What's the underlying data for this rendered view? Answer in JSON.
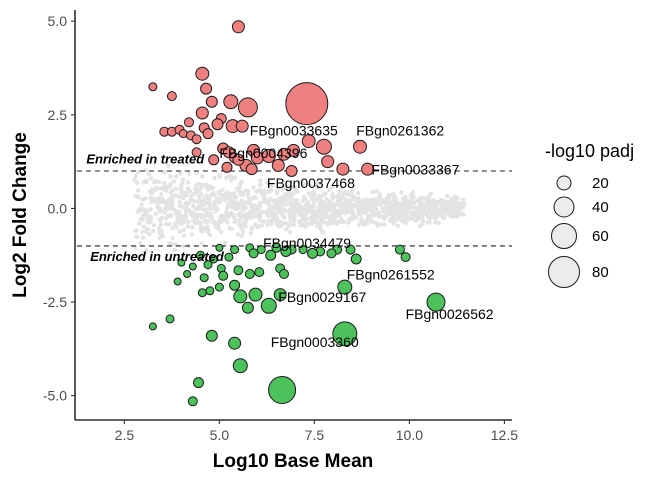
{
  "chart_data": {
    "type": "scatter",
    "xlabel": "Log10 Base Mean",
    "ylabel": "Log2 Fold Change",
    "xlim": [
      1.2,
      12.7
    ],
    "ylim": [
      -5.65,
      5.3
    ],
    "xticks": [
      2.5,
      5.0,
      7.5,
      10.0,
      12.5
    ],
    "xtick_labels": [
      "2.5",
      "5.0",
      "7.5",
      "10.0",
      "12.5"
    ],
    "yticks": [
      -5.0,
      -2.5,
      0.0,
      2.5,
      5.0
    ],
    "ytick_labels": [
      "-5.0",
      "-2.5",
      "0.0",
      "2.5",
      "5.0"
    ],
    "thresholds": [
      1,
      -1
    ],
    "annotations": {
      "up": {
        "text": "Enriched in treated",
        "x": 1.5,
        "y": 1.2
      },
      "down": {
        "text": "Enriched in untreated",
        "x": 1.6,
        "y": -1.4
      }
    },
    "legend": {
      "title": "-log10 padj",
      "entries": [
        {
          "label": "20",
          "value": 20
        },
        {
          "label": "40",
          "value": 40
        },
        {
          "label": "60",
          "value": 60
        },
        {
          "label": "80",
          "value": 80
        }
      ]
    },
    "colors": {
      "up": "#f08080",
      "down": "#4cc25a",
      "background": "#e3e3e3",
      "outline": "#1a1a1a"
    },
    "series": [
      {
        "name": "Enriched in treated",
        "points": [
          [
            5.5,
            4.85,
            12
          ],
          [
            4.55,
            3.6,
            13
          ],
          [
            3.25,
            3.25,
            8
          ],
          [
            4.65,
            3.2,
            11
          ],
          [
            3.75,
            3.0,
            9
          ],
          [
            4.8,
            2.85,
            11
          ],
          [
            5.3,
            2.85,
            14
          ],
          [
            5.75,
            2.7,
            19
          ],
          [
            7.3,
            2.8,
            42
          ],
          [
            4.55,
            2.55,
            12
          ],
          [
            5.05,
            2.4,
            10
          ],
          [
            4.95,
            2.25,
            11
          ],
          [
            5.35,
            2.2,
            13
          ],
          [
            5.6,
            2.2,
            12
          ],
          [
            4.2,
            2.3,
            9
          ],
          [
            4.6,
            2.15,
            10
          ],
          [
            3.55,
            2.05,
            9
          ],
          [
            3.75,
            2.05,
            9
          ],
          [
            3.95,
            2.1,
            9
          ],
          [
            4.05,
            2.0,
            8
          ],
          [
            4.25,
            1.95,
            9
          ],
          [
            4.4,
            1.85,
            9
          ],
          [
            4.7,
            2.0,
            10
          ],
          [
            5.1,
            1.6,
            11
          ],
          [
            5.25,
            1.5,
            11
          ],
          [
            5.4,
            1.35,
            10
          ],
          [
            5.9,
            1.55,
            12
          ],
          [
            6.0,
            1.35,
            12
          ],
          [
            6.3,
            1.4,
            13
          ],
          [
            6.7,
            1.45,
            12
          ],
          [
            6.95,
            1.55,
            12
          ],
          [
            7.35,
            1.8,
            13
          ],
          [
            7.75,
            1.65,
            15
          ],
          [
            8.7,
            1.65,
            13
          ],
          [
            6.55,
            1.15,
            12
          ],
          [
            6.9,
            1.0,
            11
          ],
          [
            8.25,
            1.05,
            12
          ],
          [
            8.9,
            1.05,
            12
          ],
          [
            5.7,
            1.15,
            12
          ],
          [
            5.5,
            1.3,
            11
          ],
          [
            4.85,
            1.3,
            10
          ],
          [
            5.85,
            1.05,
            11
          ],
          [
            5.2,
            1.1,
            10
          ],
          [
            4.4,
            1.5,
            9
          ],
          [
            7.85,
            1.25,
            12
          ]
        ]
      },
      {
        "name": "Enriched in untreated",
        "points": [
          [
            5.0,
            -1.05,
            7
          ],
          [
            5.4,
            -1.1,
            8
          ],
          [
            5.8,
            -1.05,
            8
          ],
          [
            6.1,
            -1.1,
            8
          ],
          [
            6.5,
            -1.05,
            9
          ],
          [
            6.9,
            -1.1,
            9
          ],
          [
            7.2,
            -1.1,
            8
          ],
          [
            7.65,
            -1.15,
            9
          ],
          [
            8.1,
            -1.1,
            9
          ],
          [
            8.45,
            -1.1,
            9
          ],
          [
            9.75,
            -1.1,
            9
          ],
          [
            9.9,
            -1.3,
            9
          ],
          [
            4.5,
            -1.25,
            8
          ],
          [
            4.85,
            -1.35,
            8
          ],
          [
            5.25,
            -1.3,
            8
          ],
          [
            5.9,
            -1.2,
            9
          ],
          [
            6.35,
            -1.25,
            10
          ],
          [
            6.75,
            -1.15,
            10
          ],
          [
            7.45,
            -1.2,
            10
          ],
          [
            7.95,
            -1.2,
            9
          ],
          [
            8.6,
            -1.35,
            10
          ],
          [
            4.0,
            -1.45,
            7
          ],
          [
            4.3,
            -1.55,
            7
          ],
          [
            4.7,
            -1.5,
            8
          ],
          [
            5.05,
            -1.6,
            8
          ],
          [
            5.5,
            -1.65,
            9
          ],
          [
            6.05,
            -1.7,
            9
          ],
          [
            6.6,
            -1.6,
            9
          ],
          [
            4.15,
            -1.75,
            7
          ],
          [
            4.6,
            -1.85,
            8
          ],
          [
            5.1,
            -1.8,
            9
          ],
          [
            5.8,
            -1.75,
            9
          ],
          [
            6.7,
            -1.75,
            9
          ],
          [
            3.9,
            -1.95,
            7
          ],
          [
            5.0,
            -2.1,
            8
          ],
          [
            4.75,
            -2.2,
            8
          ],
          [
            4.55,
            -2.25,
            8
          ],
          [
            5.4,
            -2.05,
            10
          ],
          [
            8.3,
            -2.1,
            14
          ],
          [
            5.95,
            -2.3,
            13
          ],
          [
            6.6,
            -2.3,
            12
          ],
          [
            5.55,
            -2.35,
            13
          ],
          [
            6.3,
            -2.6,
            15
          ],
          [
            5.75,
            -2.65,
            11
          ],
          [
            10.7,
            -2.5,
            18
          ],
          [
            3.7,
            -2.95,
            8
          ],
          [
            3.25,
            -3.15,
            7
          ],
          [
            4.8,
            -3.4,
            11
          ],
          [
            5.4,
            -3.6,
            12
          ],
          [
            8.3,
            -3.35,
            24
          ],
          [
            5.55,
            -4.2,
            14
          ],
          [
            4.45,
            -4.65,
            10
          ],
          [
            6.65,
            -4.85,
            27
          ],
          [
            4.3,
            -5.15,
            9
          ]
        ]
      }
    ],
    "labels": [
      {
        "text": "FBgn0033635",
        "x": 5.8,
        "y": 1.95
      },
      {
        "text": "FBgn0261362",
        "x": 8.6,
        "y": 1.95
      },
      {
        "text": "FBgn0004396",
        "x": 5.0,
        "y": 1.35
      },
      {
        "text": "FBgn0033367",
        "x": 9.0,
        "y": 0.9
      },
      {
        "text": "FBgn0037468",
        "x": 6.25,
        "y": 0.55
      },
      {
        "text": "FBgn0034479",
        "x": 6.15,
        "y": -1.05
      },
      {
        "text": "FBgn0261552",
        "x": 8.35,
        "y": -1.9
      },
      {
        "text": "FBgn0029167",
        "x": 6.55,
        "y": -2.5
      },
      {
        "text": "FBgn0026562",
        "x": 9.9,
        "y": -2.95
      },
      {
        "text": "FBgn0003360",
        "x": 6.35,
        "y": -3.7
      }
    ]
  }
}
